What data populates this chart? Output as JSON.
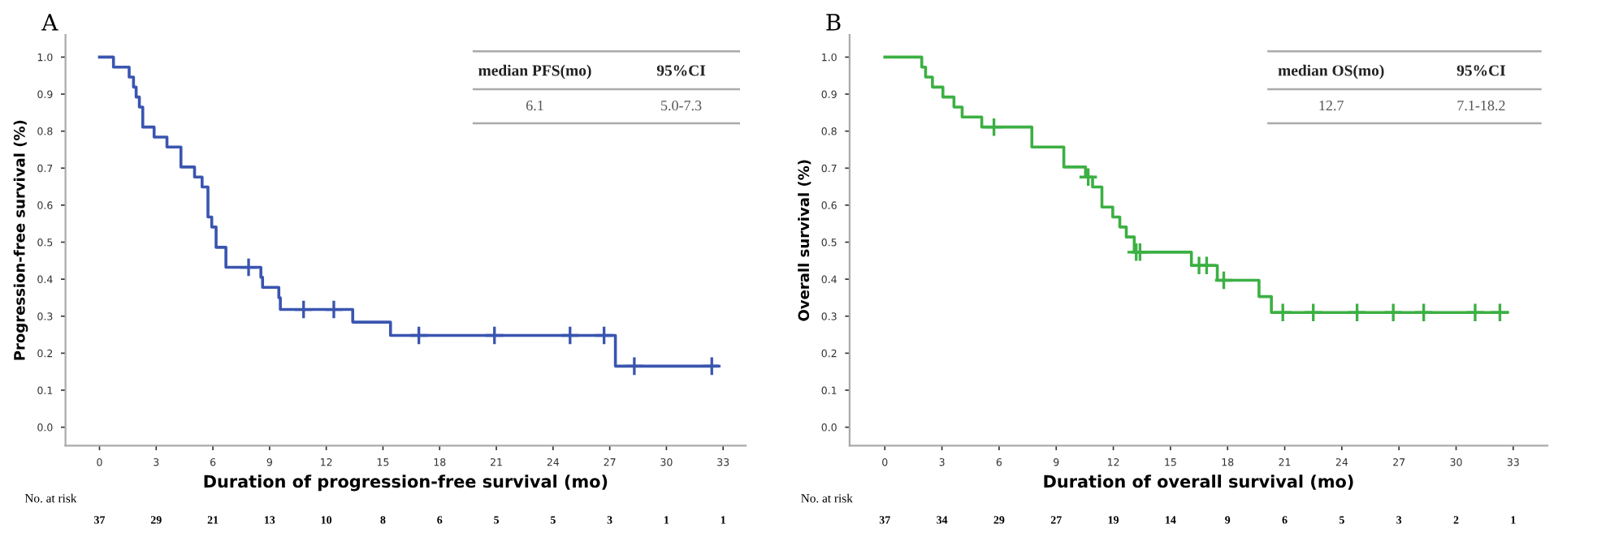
{
  "chart_data": [
    {
      "type": "step",
      "title": "A",
      "xlabel": "Duration of progression-free survival (mo)",
      "ylabel": "Progression-free survival (%)",
      "xlim": [
        -1.8,
        34.2
      ],
      "ylim": [
        -0.05,
        1.06
      ],
      "xticks": [
        0,
        3,
        6,
        9,
        12,
        15,
        18,
        21,
        24,
        27,
        30,
        33
      ],
      "yticks": [
        {
          "value": 0,
          "label": "0.0"
        },
        {
          "value": 0.1,
          "label": "0.1"
        },
        {
          "value": 0.2,
          "label": "0.2"
        },
        {
          "value": 0.3,
          "label": "0.3"
        },
        {
          "value": 0.4,
          "label": "0.4"
        },
        {
          "value": 0.5,
          "label": "0.5"
        },
        {
          "value": 0.6,
          "label": "0.6"
        },
        {
          "value": 0.7,
          "label": "0.7"
        },
        {
          "value": 0.8,
          "label": "0.8"
        },
        {
          "value": 0.9,
          "label": "0.9"
        },
        {
          "value": 1,
          "label": "1.0"
        }
      ],
      "series": [
        {
          "color": "#3a55b0",
          "marker": "none",
          "x": [
            0,
            0.74,
            1.57,
            1.8,
            1.94,
            2.11,
            2.29,
            2.89,
            3.57,
            4.31,
            5.03,
            5.43,
            5.74,
            5.94,
            6.17,
            6.69,
            8.54,
            8.63,
            9.49,
            9.57,
            13.4,
            15.4,
            27.3,
            32.7
          ],
          "values": [
            1.0,
            0.973,
            0.946,
            0.919,
            0.892,
            0.865,
            0.811,
            0.784,
            0.757,
            0.703,
            0.676,
            0.649,
            0.568,
            0.541,
            0.486,
            0.432,
            0.405,
            0.378,
            0.35,
            0.318,
            0.284,
            0.248,
            0.165,
            0.165
          ]
        },
        {
          "type": "scatter",
          "color": "#3a55b0",
          "marker": "cross",
          "x": [
            7.89,
            10.8,
            12.4,
            16.9,
            20.9,
            24.9,
            26.7,
            28.3,
            32.4
          ],
          "values": [
            0.432,
            0.318,
            0.318,
            0.248,
            0.248,
            0.248,
            0.248,
            0.165,
            0.165
          ]
        }
      ],
      "annotations": [
        "median PFS(mo)",
        "95%CI",
        "6.1",
        "5.0-7.3",
        "No. at risk",
        "37",
        "29",
        "21",
        "13",
        "10",
        "8",
        "6",
        "5",
        "5",
        "3",
        "1",
        "1"
      ]
    },
    {
      "type": "step",
      "title": "B",
      "xlabel": "Duration of overall survival (mo)",
      "ylabel": "Overall survival (%)",
      "xlim": [
        -1.85,
        34.8
      ],
      "ylim": [
        -0.05,
        1.06
      ],
      "xticks": [
        0,
        3,
        6,
        9,
        12,
        15,
        18,
        21,
        24,
        27,
        30,
        33
      ],
      "yticks": [
        {
          "value": 0,
          "label": "0.0"
        },
        {
          "value": 0.1,
          "label": "0.1"
        },
        {
          "value": 0.2,
          "label": "0.2"
        },
        {
          "value": 0.3,
          "label": "0.3"
        },
        {
          "value": 0.4,
          "label": "0.4"
        },
        {
          "value": 0.5,
          "label": "0.5"
        },
        {
          "value": 0.6,
          "label": "0.6"
        },
        {
          "value": 0.7,
          "label": "0.7"
        },
        {
          "value": 0.8,
          "label": "0.8"
        },
        {
          "value": 0.9,
          "label": "0.9"
        },
        {
          "value": 1,
          "label": "1.0"
        }
      ],
      "series": [
        {
          "color": "#3cb043",
          "marker": "none",
          "x": [
            0,
            1.94,
            2.14,
            2.5,
            3.05,
            3.63,
            4.06,
            5.09,
            7.72,
            9.4,
            10.54,
            10.91,
            11.4,
            11.97,
            12.34,
            12.68,
            13.1,
            16.1,
            17.46,
            19.65,
            20.3,
            32.7
          ],
          "values": [
            1.0,
            0.973,
            0.946,
            0.919,
            0.892,
            0.865,
            0.838,
            0.811,
            0.757,
            0.703,
            0.676,
            0.649,
            0.595,
            0.568,
            0.541,
            0.514,
            0.473,
            0.437,
            0.397,
            0.353,
            0.31,
            0.31
          ]
        },
        {
          "type": "scatter",
          "color": "#3cb043",
          "marker": "cross",
          "x": [
            5.73,
            10.68,
            13.2,
            13.4,
            16.5,
            16.9,
            17.8,
            20.9,
            22.5,
            24.8,
            26.7,
            28.3,
            31.0,
            32.3
          ],
          "values": [
            0.811,
            0.676,
            0.473,
            0.473,
            0.437,
            0.437,
            0.397,
            0.31,
            0.31,
            0.31,
            0.31,
            0.31,
            0.31,
            0.31
          ]
        }
      ],
      "annotations": [
        "median OS(mo)",
        "95%CI",
        "12.7",
        "7.1-18.2",
        "No. at risk",
        "37",
        "34",
        "29",
        "27",
        "19",
        "14",
        "9",
        "6",
        "5",
        "3",
        "2",
        "1"
      ]
    }
  ]
}
